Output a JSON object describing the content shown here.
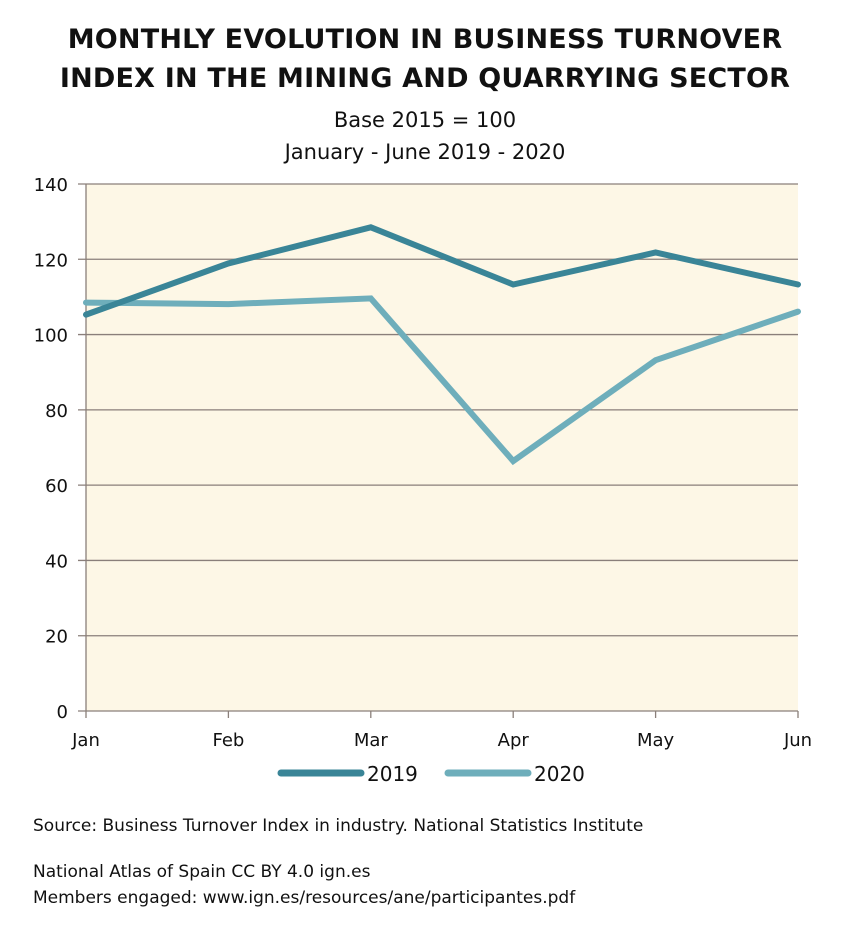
{
  "header": {
    "title_line1": "MONTHLY EVOLUTION IN BUSINESS TURNOVER",
    "title_line2": "INDEX IN THE MINING AND QUARRYING SECTOR",
    "subtitle_line1": "Base 2015 = 100",
    "subtitle_line2": "January - June 2019 - 2020"
  },
  "footer": {
    "source": "Source: Business Turnover Index in industry. National Statistics Institute",
    "atlas": "National Atlas of Spain CC BY 4.0 ign.es",
    "members": "Members engaged: www.ign.es/resources/ane/participantes.pdf"
  },
  "colors": {
    "plot_background": "#fdf7e6",
    "grid": "#8a7f7a",
    "series_2019": "#3a8597",
    "series_2020": "#6eaebb"
  },
  "chart_data": {
    "type": "line",
    "title": "MONTHLY EVOLUTION IN BUSINESS TURNOVER INDEX IN THE MINING AND QUARRYING SECTOR",
    "subtitle": "Base 2015 = 100 — January - June 2019 - 2020",
    "xlabel": "",
    "ylabel": "",
    "categories": [
      "Jan",
      "Feb",
      "Mar",
      "Apr",
      "May",
      "Jun"
    ],
    "ylim": [
      0,
      140
    ],
    "yticks": [
      0,
      20,
      40,
      60,
      80,
      100,
      120,
      140
    ],
    "grid": true,
    "legend_position": "bottom",
    "series": [
      {
        "name": "2019",
        "values": [
          105.3,
          118.9,
          128.5,
          113.3,
          121.8,
          113.3
        ]
      },
      {
        "name": "2020",
        "values": [
          108.5,
          108.1,
          109.6,
          66.4,
          93.2,
          106.1
        ]
      }
    ]
  }
}
